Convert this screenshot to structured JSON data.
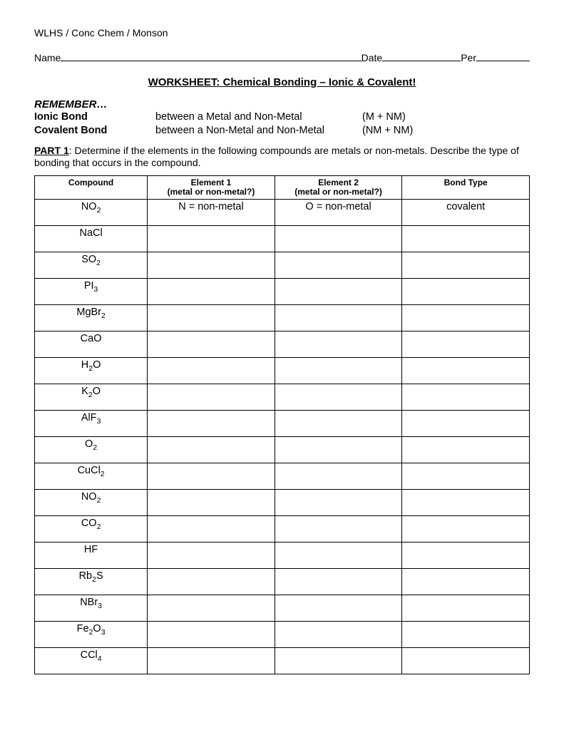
{
  "header": {
    "class_line": "WLHS / Conc Chem / Monson",
    "name_label": "Name",
    "date_label": "Date",
    "per_label": "Per"
  },
  "title": "WORKSHEET: Chemical Bonding – Ionic & Covalent!",
  "remember": {
    "label": "REMEMBER…",
    "rows": [
      {
        "name": "Ionic Bond",
        "desc": "between a Metal and Non-Metal",
        "formula": "(M + NM)"
      },
      {
        "name": "Covalent Bond",
        "desc": "between a Non-Metal and Non-Metal",
        "formula": "(NM + NM)"
      }
    ]
  },
  "part1": {
    "label": "PART 1",
    "text": ":  Determine if the elements in the following compounds are metals or non-metals.  Describe the type of bonding that occurs in the compound."
  },
  "table": {
    "headers": {
      "compound": "Compound",
      "el1_a": "Element 1",
      "el1_b": "(metal or non-metal?)",
      "el2_a": "Element 2",
      "el2_b": "(metal or non-metal?)",
      "bond": "Bond Type"
    },
    "rows": [
      {
        "compound_html": "NO<sub>2</sub>",
        "el1": "N = non-metal",
        "el2": "O = non-metal",
        "bond": "covalent"
      },
      {
        "compound_html": "NaCl",
        "el1": "",
        "el2": "",
        "bond": ""
      },
      {
        "compound_html": "SO<sub>2</sub>",
        "el1": "",
        "el2": "",
        "bond": ""
      },
      {
        "compound_html": "PI<sub>3</sub>",
        "el1": "",
        "el2": "",
        "bond": ""
      },
      {
        "compound_html": "MgBr<sub>2</sub>",
        "el1": "",
        "el2": "",
        "bond": ""
      },
      {
        "compound_html": "CaO",
        "el1": "",
        "el2": "",
        "bond": ""
      },
      {
        "compound_html": "H<sub>2</sub>O",
        "el1": "",
        "el2": "",
        "bond": ""
      },
      {
        "compound_html": "K<sub>2</sub>O",
        "el1": "",
        "el2": "",
        "bond": ""
      },
      {
        "compound_html": "AlF<sub>3</sub>",
        "el1": "",
        "el2": "",
        "bond": ""
      },
      {
        "compound_html": "O<sub>2</sub>",
        "el1": "",
        "el2": "",
        "bond": ""
      },
      {
        "compound_html": "CuCl<sub>2</sub>",
        "el1": "",
        "el2": "",
        "bond": ""
      },
      {
        "compound_html": "NO<sub>2</sub>",
        "el1": "",
        "el2": "",
        "bond": ""
      },
      {
        "compound_html": "CO<sub>2</sub>",
        "el1": "",
        "el2": "",
        "bond": ""
      },
      {
        "compound_html": "HF",
        "el1": "",
        "el2": "",
        "bond": ""
      },
      {
        "compound_html": "Rb<sub>2</sub>S",
        "el1": "",
        "el2": "",
        "bond": ""
      },
      {
        "compound_html": "NBr<sub>3</sub>",
        "el1": "",
        "el2": "",
        "bond": ""
      },
      {
        "compound_html": "Fe<sub>2</sub>O<sub>3</sub>",
        "el1": "",
        "el2": "",
        "bond": ""
      },
      {
        "compound_html": "CCl<sub>4</sub>",
        "el1": "",
        "el2": "",
        "bond": ""
      }
    ]
  }
}
